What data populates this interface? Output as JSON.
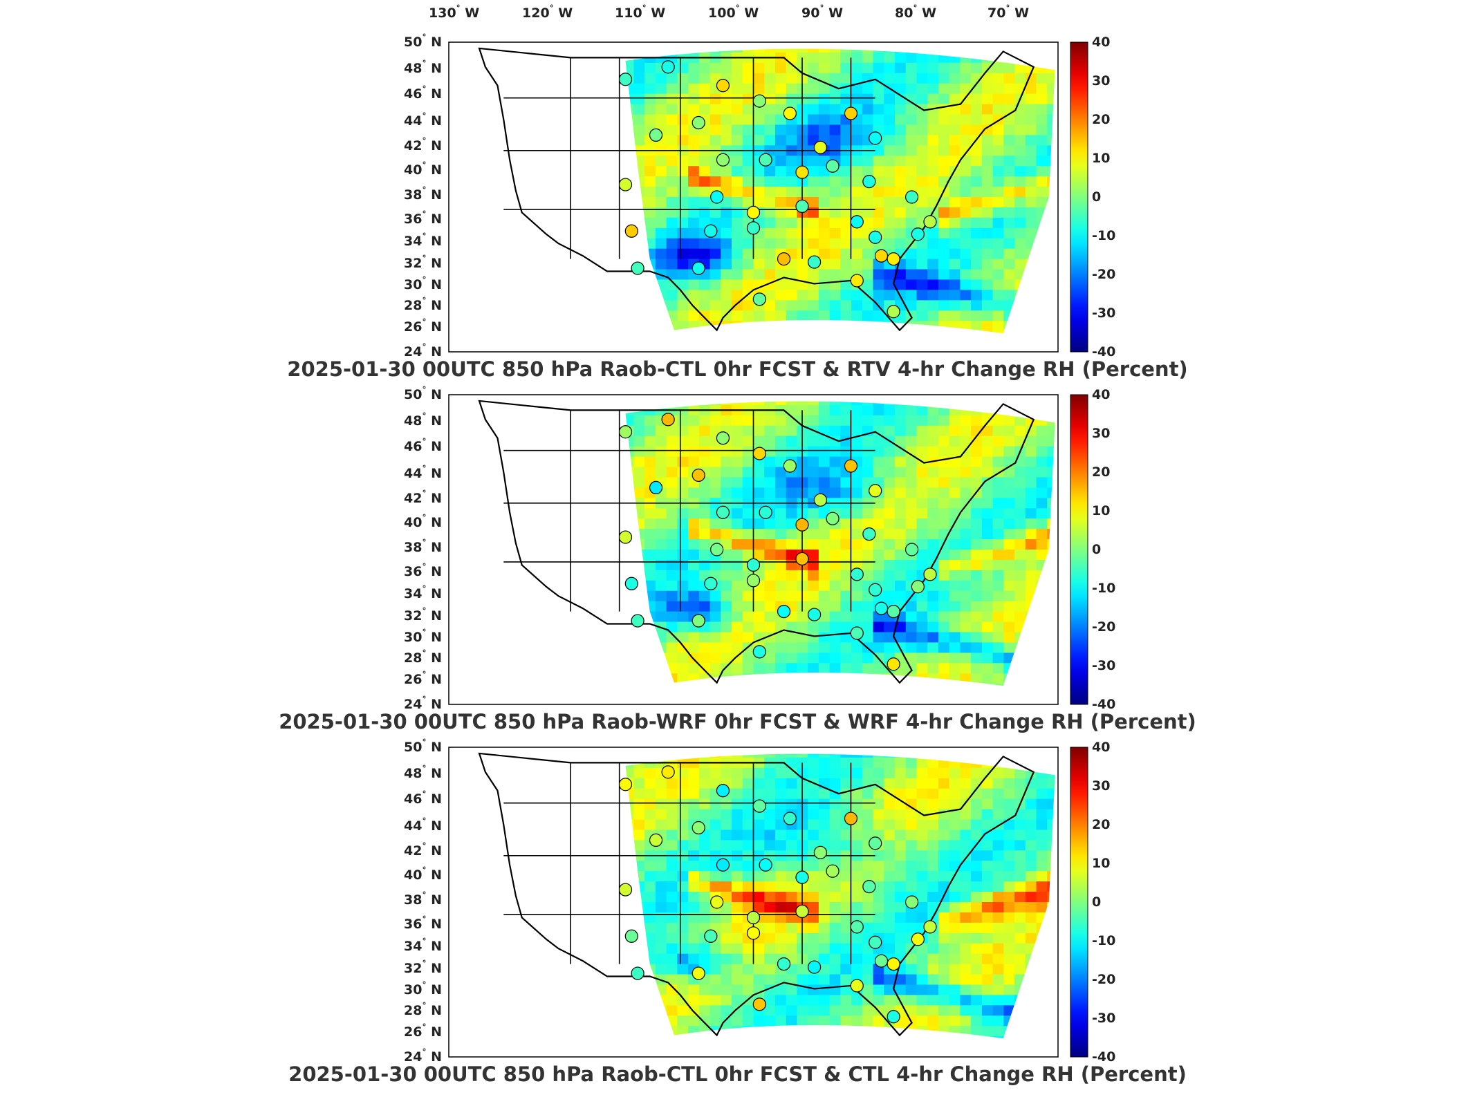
{
  "longitude_labels": [
    {
      "deg": "130",
      "hemi": "W"
    },
    {
      "deg": "120",
      "hemi": "W"
    },
    {
      "deg": "110",
      "hemi": "W"
    },
    {
      "deg": "100",
      "hemi": "W"
    },
    {
      "deg": "90",
      "hemi": "W"
    },
    {
      "deg": "80",
      "hemi": "W"
    },
    {
      "deg": "70",
      "hemi": "W"
    }
  ],
  "latitude_labels": [
    {
      "deg": "50",
      "hemi": "N"
    },
    {
      "deg": "48",
      "hemi": "N"
    },
    {
      "deg": "46",
      "hemi": "N"
    },
    {
      "deg": "44",
      "hemi": "N"
    },
    {
      "deg": "42",
      "hemi": "N"
    },
    {
      "deg": "40",
      "hemi": "N"
    },
    {
      "deg": "38",
      "hemi": "N"
    },
    {
      "deg": "36",
      "hemi": "N"
    },
    {
      "deg": "34",
      "hemi": "N"
    },
    {
      "deg": "32",
      "hemi": "N"
    },
    {
      "deg": "30",
      "hemi": "N"
    },
    {
      "deg": "28",
      "hemi": "N"
    },
    {
      "deg": "26",
      "hemi": "N"
    },
    {
      "deg": "24",
      "hemi": "N"
    }
  ],
  "colorbar": {
    "ticks": [
      "40",
      "30",
      "20",
      "10",
      "0",
      "-10",
      "-20",
      "-30",
      "-40"
    ],
    "min": -40,
    "max": 40,
    "colormap": "jet"
  },
  "panels": [
    {
      "title": "2025-01-30 00UTC 850 hPa Raob-CTL 0hr FCST & RTV 4-hr Change RH (Percent)"
    },
    {
      "title": "2025-01-30 00UTC 850 hPa Raob-WRF 0hr FCST & WRF 4-hr Change RH (Percent)"
    },
    {
      "title": "2025-01-30 00UTC 850 hPa Raob-CTL 0hr FCST & CTL 4-hr Change RH (Percent)"
    }
  ],
  "colors": {
    "land_outline": "#000000",
    "background": "#ffffff",
    "text": "#222222"
  }
}
